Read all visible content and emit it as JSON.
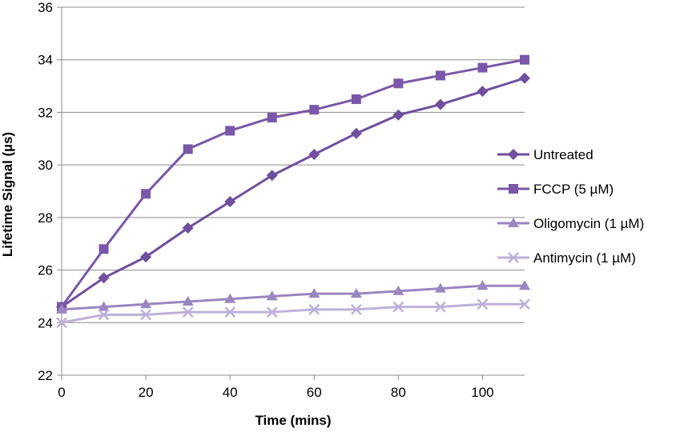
{
  "chart_data": {
    "type": "line",
    "title": "",
    "xlabel": "Time (mins)",
    "ylabel": "Lifetime Signal (µs)",
    "xlim": [
      0,
      110
    ],
    "ylim": [
      22,
      36
    ],
    "x_ticks": [
      0,
      20,
      40,
      60,
      80,
      100
    ],
    "y_ticks": [
      22,
      24,
      26,
      28,
      30,
      32,
      34,
      36
    ],
    "x_tick_labels": [
      "0",
      "20",
      "40",
      "60",
      "80",
      "100"
    ],
    "y_tick_labels": [
      "22",
      "24",
      "26",
      "28",
      "30",
      "32",
      "34",
      "36"
    ],
    "grid": "horizontal",
    "legend_position": "right",
    "x": [
      0,
      10,
      20,
      30,
      40,
      50,
      60,
      70,
      80,
      90,
      100,
      110
    ],
    "series": [
      {
        "name": "Untreated",
        "marker": "diamond",
        "color": "#6f4f9e",
        "values": [
          24.6,
          25.7,
          26.5,
          27.6,
          28.6,
          29.6,
          30.4,
          31.2,
          31.9,
          32.3,
          32.8,
          33.3
        ]
      },
      {
        "name": "FCCP (5 µM)",
        "marker": "square",
        "color": "#7a57a8",
        "values": [
          24.6,
          26.8,
          28.9,
          30.6,
          31.3,
          31.8,
          32.1,
          32.5,
          33.1,
          33.4,
          33.7,
          34.0
        ]
      },
      {
        "name": "Oligomycin (1 µM)",
        "marker": "triangle",
        "color": "#9a86c0",
        "values": [
          24.5,
          24.6,
          24.7,
          24.8,
          24.9,
          25.0,
          25.1,
          25.1,
          25.2,
          25.3,
          25.4,
          25.4
        ]
      },
      {
        "name": "Antimycin (1 µM)",
        "marker": "x",
        "color": "#bdb1d9",
        "values": [
          24.0,
          24.3,
          24.3,
          24.4,
          24.4,
          24.4,
          24.5,
          24.5,
          24.6,
          24.6,
          24.7,
          24.7
        ]
      }
    ]
  }
}
